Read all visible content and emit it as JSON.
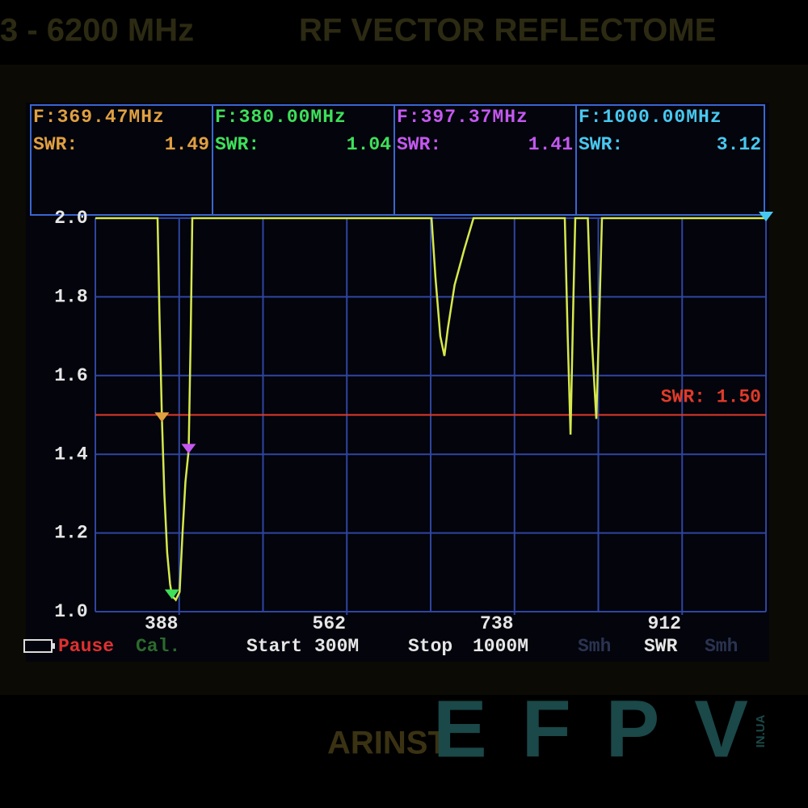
{
  "header": {
    "range": "3 - 6200 MHz",
    "title": "RF VECTOR REFLECTOME"
  },
  "chart_data": {
    "type": "line",
    "x": [
      300,
      364.9,
      367,
      369.5,
      372,
      375,
      378,
      380,
      384,
      388,
      391,
      394,
      397.4,
      399.5,
      401.2,
      650.9,
      655,
      660,
      664.3,
      668,
      675,
      685,
      694.7,
      790,
      793,
      796,
      799,
      801,
      814,
      818,
      822.9,
      826,
      828.8,
      1000
    ],
    "values": [
      2.0,
      2.0,
      1.75,
      1.49,
      1.3,
      1.15,
      1.07,
      1.04,
      1.03,
      1.05,
      1.2,
      1.33,
      1.41,
      1.7,
      2.0,
      2.0,
      1.85,
      1.7,
      1.65,
      1.72,
      1.83,
      1.92,
      2.0,
      2.0,
      1.7,
      1.45,
      1.8,
      2.0,
      2.0,
      1.7,
      1.49,
      1.75,
      2.0,
      2.0
    ],
    "color": "#d6e84c",
    "xlim": [
      300,
      1000
    ],
    "xticks": [
      {
        "value": 387.5,
        "label": "388"
      },
      {
        "value": 562.5,
        "label": "562"
      },
      {
        "value": 737.5,
        "label": "738"
      },
      {
        "value": 912.5,
        "label": "912"
      }
    ],
    "ylim": [
      1,
      2
    ],
    "yticks": [
      {
        "value": 1,
        "label": "1.0"
      },
      1.2,
      1.4,
      1.6,
      1.8,
      {
        "value": 2,
        "label": "2.0"
      }
    ],
    "grid": true,
    "ref_line": {
      "value": 1.5,
      "label": "SWR: 1.50",
      "color": "#e03a2a"
    },
    "markers": [
      {
        "label": "F:369.47MHz",
        "swr_label": "SWR:",
        "freq": 369.47,
        "swr": 1.49,
        "color": "#e0a040"
      },
      {
        "label": "F:380.00MHz",
        "swr_label": "SWR:",
        "freq": 380.0,
        "swr": 1.04,
        "color": "#3ee05a"
      },
      {
        "label": "F:397.37MHz",
        "swr_label": "SWR:",
        "freq": 397.37,
        "swr": 1.41,
        "color": "#c458f0"
      },
      {
        "label": "F:1000.00MHz",
        "swr_label": "SWR:",
        "freq": 1000.0,
        "swr": 3.12,
        "color": "#48c8f0"
      }
    ]
  },
  "status_bar": {
    "pause": "Pause",
    "cal": "Cal.",
    "start_label": "Start",
    "start": "300M",
    "stop_label": "Stop",
    "stop": "1000M",
    "mode1": "Smh",
    "mode2": "SWR",
    "mode3": "Smh"
  },
  "footer": {
    "brand": "ARINST",
    "watermark": "EFPV",
    "watermark_domain": "IN.UA"
  }
}
